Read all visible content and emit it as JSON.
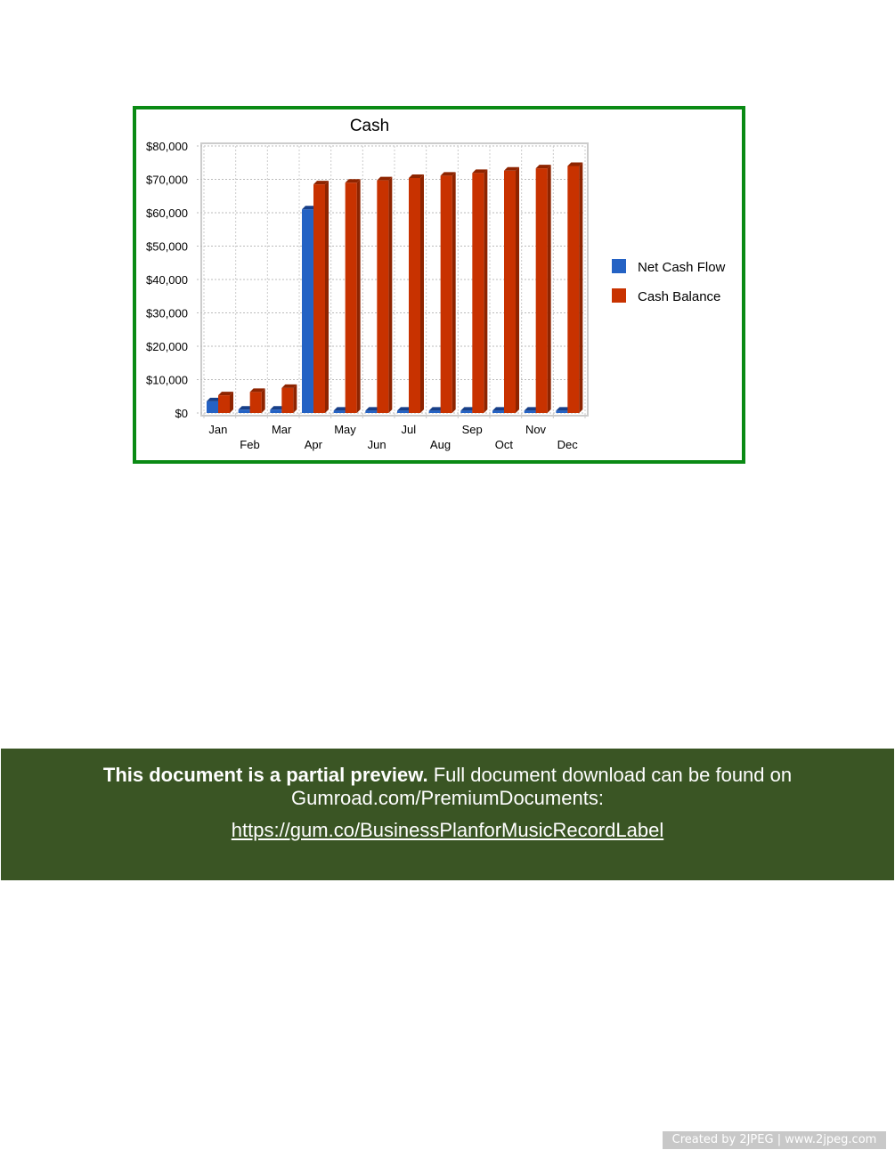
{
  "chart_data": {
    "type": "bar",
    "title": "Cash",
    "categories": [
      "Jan",
      "Feb",
      "Mar",
      "Apr",
      "May",
      "Jun",
      "Jul",
      "Aug",
      "Sep",
      "Oct",
      "Nov",
      "Dec"
    ],
    "series": [
      {
        "name": "Net Cash Flow",
        "color": "#2462c4",
        "values": [
          3500,
          1000,
          1000,
          61000,
          700,
          700,
          700,
          700,
          700,
          700,
          700,
          700
        ]
      },
      {
        "name": "Cash Balance",
        "color": "#c83200",
        "values": [
          5300,
          6300,
          7500,
          68500,
          69000,
          69700,
          70400,
          71100,
          71900,
          72600,
          73300,
          74000
        ]
      }
    ],
    "ylim": [
      0,
      80000
    ],
    "yticks": [
      "$0",
      "$10,000",
      "$20,000",
      "$30,000",
      "$40,000",
      "$50,000",
      "$60,000",
      "$70,000",
      "$80,000"
    ],
    "grid": true,
    "legend": "right"
  },
  "banner": {
    "bold": "This document is a partial preview.",
    "text": " Full document download can be found on Gumroad.com/PremiumDocuments:",
    "link": "https://gum.co/BusinessPlanforMusicRecordLabel"
  },
  "watermark": "Created by 2JPEG | www.2jpeg.com"
}
